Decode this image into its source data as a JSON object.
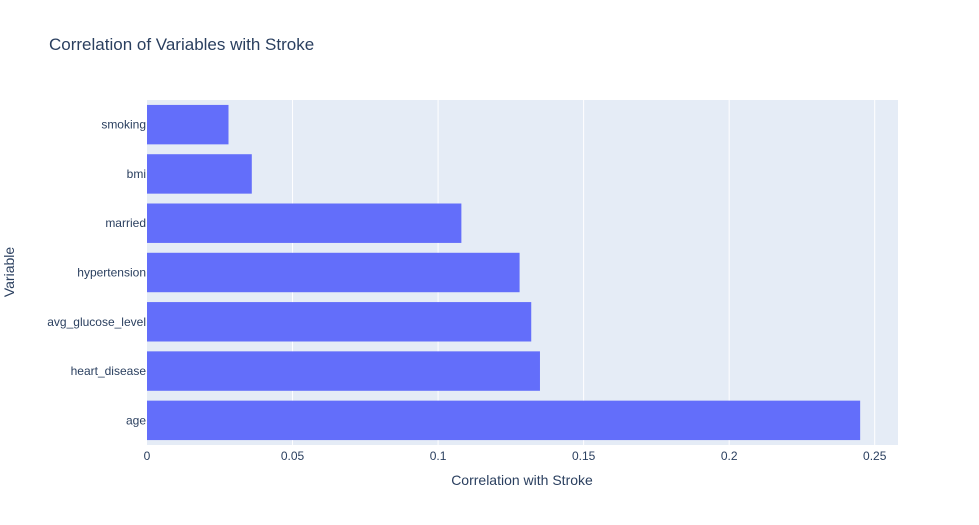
{
  "chart_data": {
    "type": "bar",
    "orientation": "horizontal",
    "title": "Correlation of Variables with Stroke",
    "xlabel": "Correlation with Stroke",
    "ylabel": "Variable",
    "categories": [
      "age",
      "heart_disease",
      "avg_glucose_level",
      "hypertension",
      "married",
      "bmi",
      "smoking"
    ],
    "values": [
      0.245,
      0.135,
      0.132,
      0.128,
      0.108,
      0.036,
      0.028
    ],
    "xlim": [
      0,
      0.258
    ],
    "xticks": [
      {
        "value": 0,
        "label": "0"
      },
      {
        "value": 0.05,
        "label": "0.05"
      },
      {
        "value": 0.1,
        "label": "0.1"
      },
      {
        "value": 0.15,
        "label": "0.15"
      },
      {
        "value": 0.2,
        "label": "0.2"
      },
      {
        "value": 0.25,
        "label": "0.25"
      }
    ],
    "grid": true,
    "colors": {
      "bar": "#636efa",
      "plot_background": "#e5ecf6",
      "gridline": "#ffffff",
      "text": "#2a3f5f"
    }
  }
}
